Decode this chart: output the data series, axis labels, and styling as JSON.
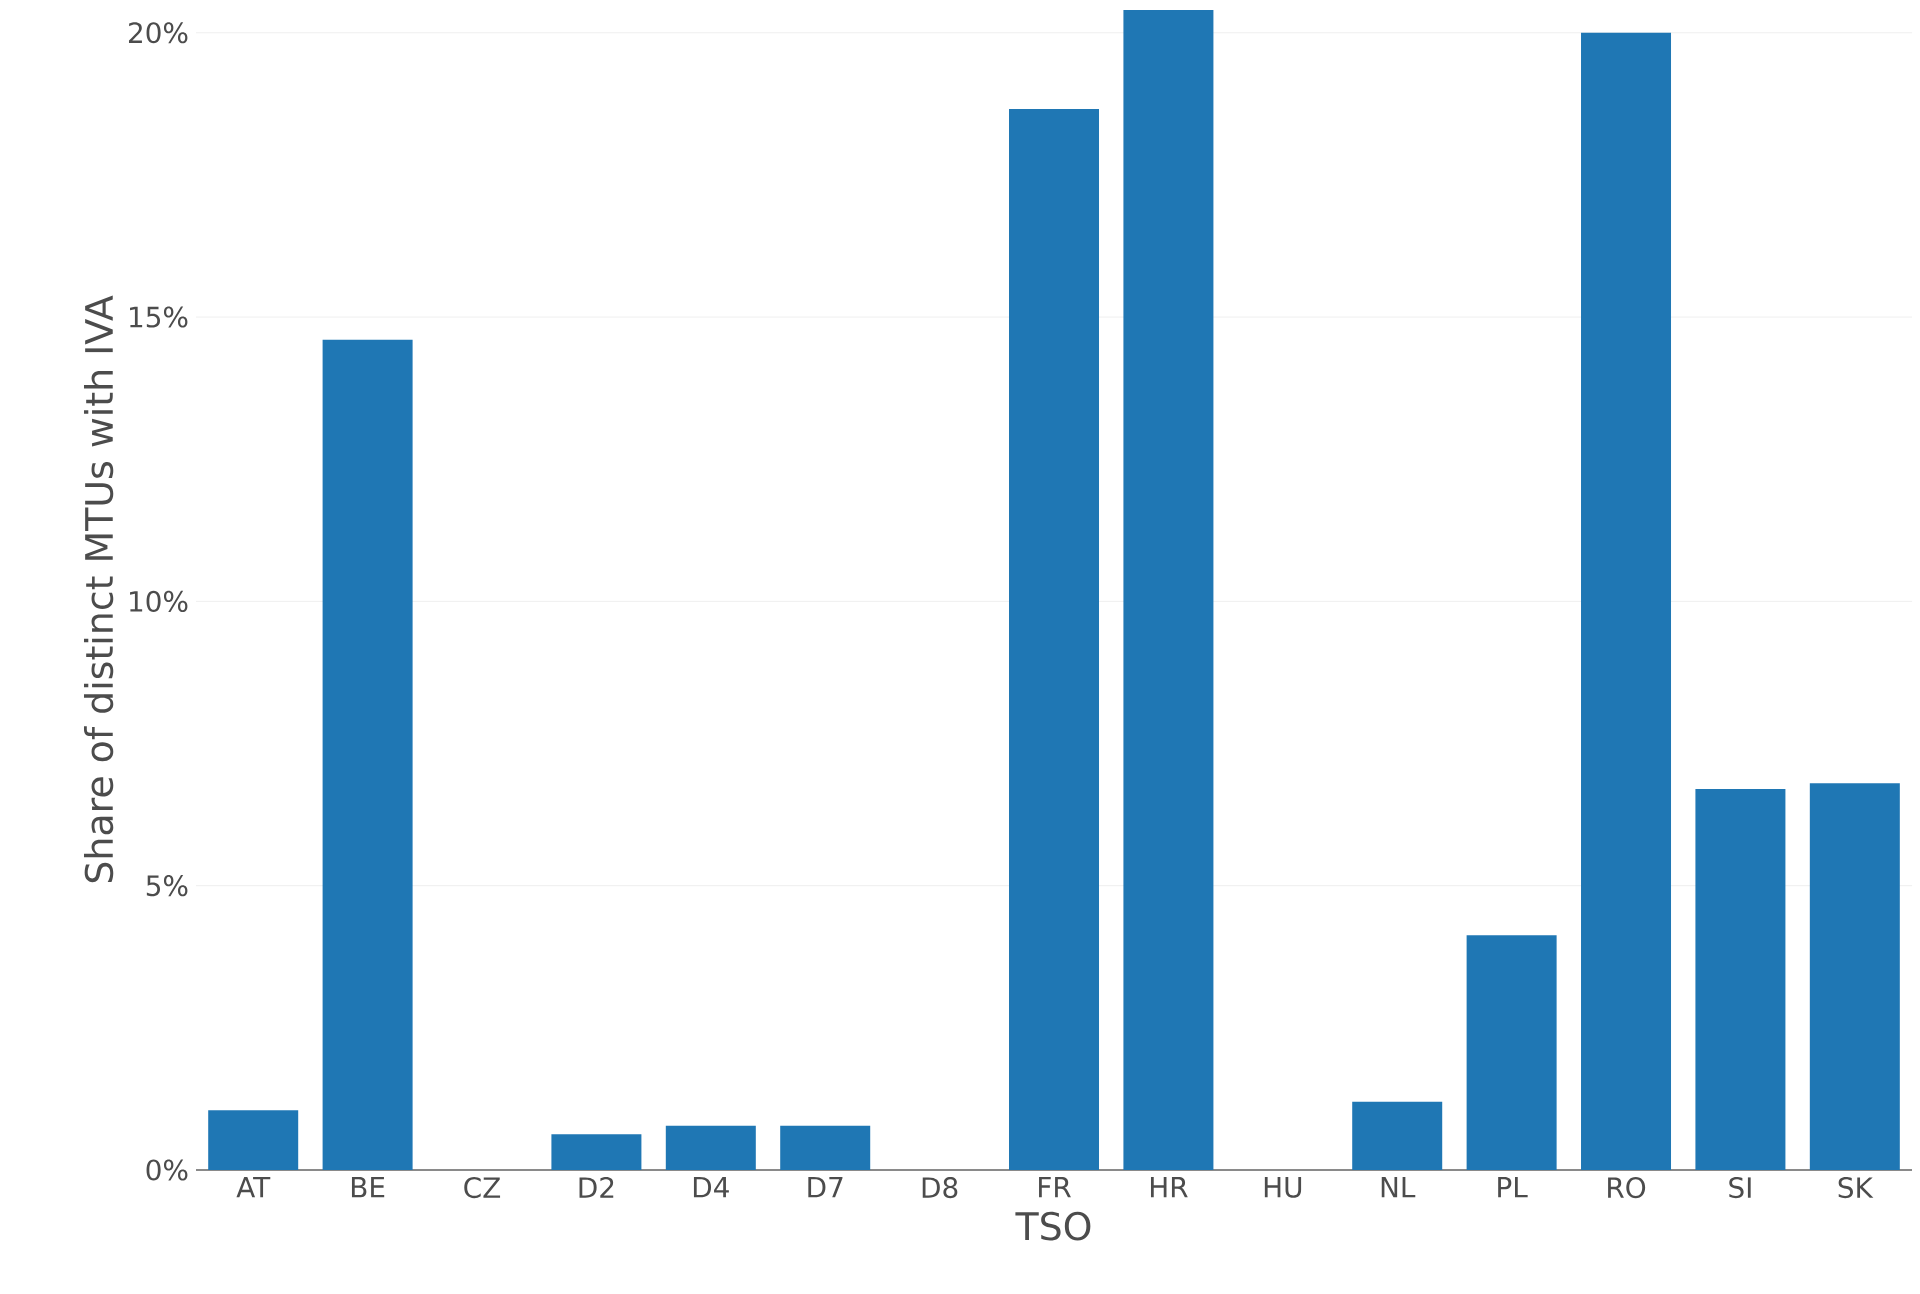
{
  "chart_data": {
    "type": "bar",
    "xlabel": "TSO",
    "ylabel": "Share of distinct MTUs with IVA",
    "categories": [
      "AT",
      "BE",
      "CZ",
      "D2",
      "D4",
      "D7",
      "D8",
      "FR",
      "HR",
      "HU",
      "NL",
      "PL",
      "RO",
      "SI",
      "SK"
    ],
    "values": [
      1.05,
      14.6,
      0,
      0.63,
      0.78,
      0.78,
      0,
      18.66,
      20.4,
      0,
      1.2,
      4.13,
      20.0,
      6.7,
      6.8
    ],
    "color": "#1f77b4",
    "ylim": [
      0,
      20.4
    ],
    "yticks": [
      {
        "value": 0,
        "label": "0%"
      },
      {
        "value": 5,
        "label": "5%"
      },
      {
        "value": 10,
        "label": "10%"
      },
      {
        "value": 15,
        "label": "15%"
      },
      {
        "value": 20,
        "label": "20%"
      }
    ],
    "grid": "y"
  }
}
